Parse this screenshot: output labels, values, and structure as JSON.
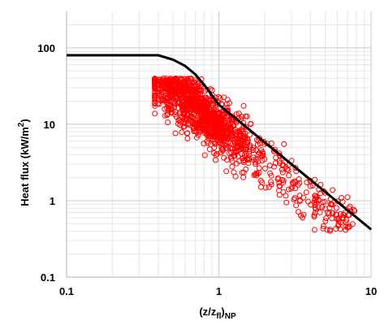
{
  "chart_data": {
    "type": "scatter",
    "title": "",
    "xlabel": "(z/z_fl)_NP",
    "xlabel_main": "(z/z",
    "xlabel_sub1": "fl",
    "xlabel_close": ")",
    "xlabel_sub2": "NP",
    "ylabel": "Heat flux (kW/m²)",
    "ylabel_main": "Heat flux (kW/m",
    "ylabel_sup": "2",
    "ylabel_close": ")",
    "x_scale": "log",
    "y_scale": "log",
    "xlim": [
      0.1,
      10
    ],
    "ylim": [
      0.1,
      300
    ],
    "x_ticks": [
      0.1,
      1,
      10
    ],
    "x_tick_labels": [
      "0.1",
      "1",
      "10"
    ],
    "y_ticks": [
      0.1,
      1,
      10,
      100
    ],
    "y_tick_labels": [
      "0.1",
      "1",
      "10",
      "100"
    ],
    "grid": true,
    "minor_grid": true,
    "series": [
      {
        "type": "line",
        "color": "#000000",
        "points": [
          [
            0.1,
            80
          ],
          [
            0.4,
            80
          ],
          [
            0.5,
            70
          ],
          [
            0.6,
            58
          ],
          [
            0.7,
            45
          ],
          [
            0.8,
            33
          ],
          [
            0.9,
            24
          ],
          [
            1.0,
            18
          ],
          [
            10,
            0.42
          ]
        ]
      },
      {
        "type": "scatter",
        "marker": "open-circle",
        "color": "#ff0000",
        "count": 1500,
        "x_range": [
          0.38,
          8
        ],
        "y_range": [
          0.4,
          40
        ],
        "trend": "y ≈ 10 · x^-1.6 with log-normal spread"
      }
    ]
  }
}
